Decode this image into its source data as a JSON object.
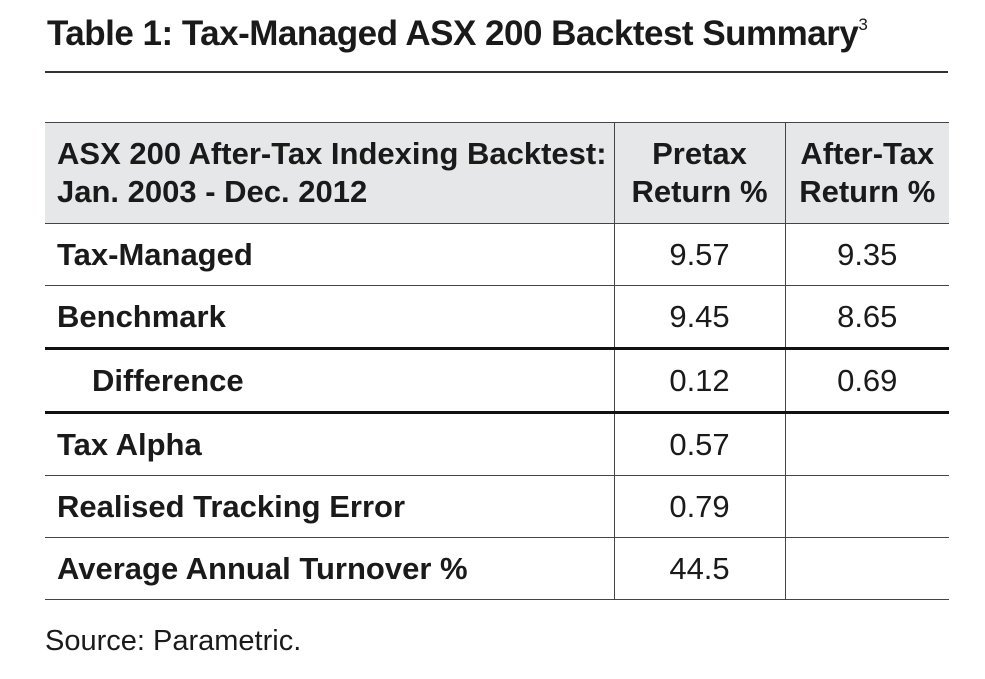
{
  "title": {
    "text": "Table 1: Tax-Managed ASX 200 Backtest Summary",
    "footnote_ref": "3"
  },
  "table": {
    "header": {
      "col0_line1": "ASX 200 After-Tax Indexing Backtest:",
      "col0_line2": "Jan. 2003 - Dec. 2012",
      "col1_line1": "Pretax",
      "col1_line2": "Return %",
      "col2_line1": "After-Tax",
      "col2_line2": "Return %"
    },
    "rows": [
      {
        "label": "Tax-Managed",
        "pretax": "9.57",
        "aftertax": "9.35"
      },
      {
        "label": "Benchmark",
        "pretax": "9.45",
        "aftertax": "8.65"
      },
      {
        "label": "Difference",
        "pretax": "0.12",
        "aftertax": "0.69"
      },
      {
        "label": "Tax Alpha",
        "pretax": "0.57",
        "aftertax": ""
      },
      {
        "label": "Realised Tracking Error",
        "pretax": "0.79",
        "aftertax": ""
      },
      {
        "label": "Average Annual Turnover %",
        "pretax": "44.5",
        "aftertax": ""
      }
    ]
  },
  "source": "Source: Parametric."
}
